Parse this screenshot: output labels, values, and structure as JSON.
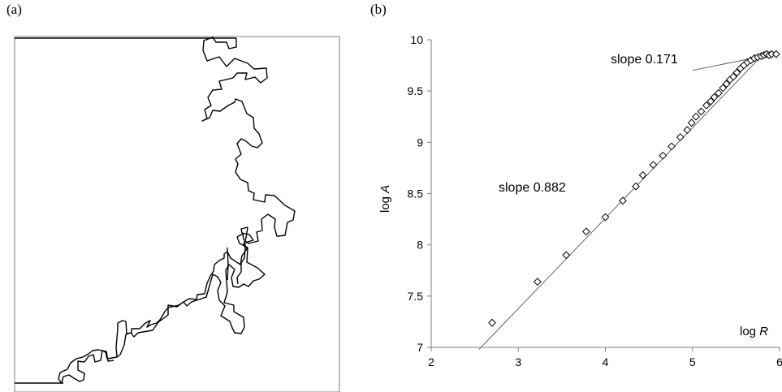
{
  "panels": {
    "a_label": "(a)",
    "b_label": "(b)"
  },
  "colors": {
    "ink": "#000000",
    "axis": "#808080",
    "fit_line": "#555555",
    "background": "#ffffff"
  },
  "chart_data": [
    {
      "panel": "(a)",
      "type": "other",
      "description_visible": "irregular boundary curve inside a frame"
    },
    {
      "panel": "(b)",
      "type": "scatter",
      "title": "",
      "xlabel": "log R",
      "ylabel": "log A",
      "xlim": [
        2,
        6
      ],
      "ylim": [
        7,
        10
      ],
      "x_ticks": [
        "2",
        "3",
        "4",
        "5",
        "6"
      ],
      "y_ticks": [
        "7",
        "7.5",
        "8",
        "8.5",
        "9",
        "9.5",
        "10"
      ],
      "grid": false,
      "series": [
        {
          "marker": "diamond",
          "points": [
            [
              2.7,
              7.24
            ],
            [
              3.22,
              7.64
            ],
            [
              3.55,
              7.9
            ],
            [
              3.78,
              8.13
            ],
            [
              4.0,
              8.27
            ],
            [
              4.2,
              8.43
            ],
            [
              4.35,
              8.57
            ],
            [
              4.43,
              8.68
            ],
            [
              4.55,
              8.78
            ],
            [
              4.66,
              8.87
            ],
            [
              4.76,
              8.96
            ],
            [
              4.86,
              9.05
            ],
            [
              4.94,
              9.12
            ],
            [
              4.99,
              9.19
            ],
            [
              5.04,
              9.25
            ],
            [
              5.1,
              9.3
            ],
            [
              5.16,
              9.36
            ],
            [
              5.21,
              9.4
            ],
            [
              5.25,
              9.44
            ],
            [
              5.3,
              9.48
            ],
            [
              5.35,
              9.53
            ],
            [
              5.39,
              9.57
            ],
            [
              5.43,
              9.61
            ],
            [
              5.47,
              9.64
            ],
            [
              5.51,
              9.68
            ],
            [
              5.55,
              9.72
            ],
            [
              5.59,
              9.75
            ],
            [
              5.63,
              9.78
            ],
            [
              5.67,
              9.8
            ],
            [
              5.71,
              9.82
            ],
            [
              5.75,
              9.83
            ],
            [
              5.79,
              9.84
            ],
            [
              5.82,
              9.85
            ],
            [
              5.85,
              9.86
            ],
            [
              5.88,
              9.85
            ],
            [
              5.91,
              9.86
            ],
            [
              5.96,
              9.86
            ]
          ]
        }
      ],
      "fit_lines": [
        {
          "label": "slope 0.882",
          "slope": 0.882,
          "x_range": [
            2.55,
            5.75
          ],
          "anchor": [
            4.0,
            8.26
          ]
        },
        {
          "label": "slope 0.171",
          "slope": 0.171,
          "x_range": [
            5.0,
            5.95
          ],
          "anchor": [
            5.75,
            9.83
          ]
        }
      ]
    }
  ]
}
